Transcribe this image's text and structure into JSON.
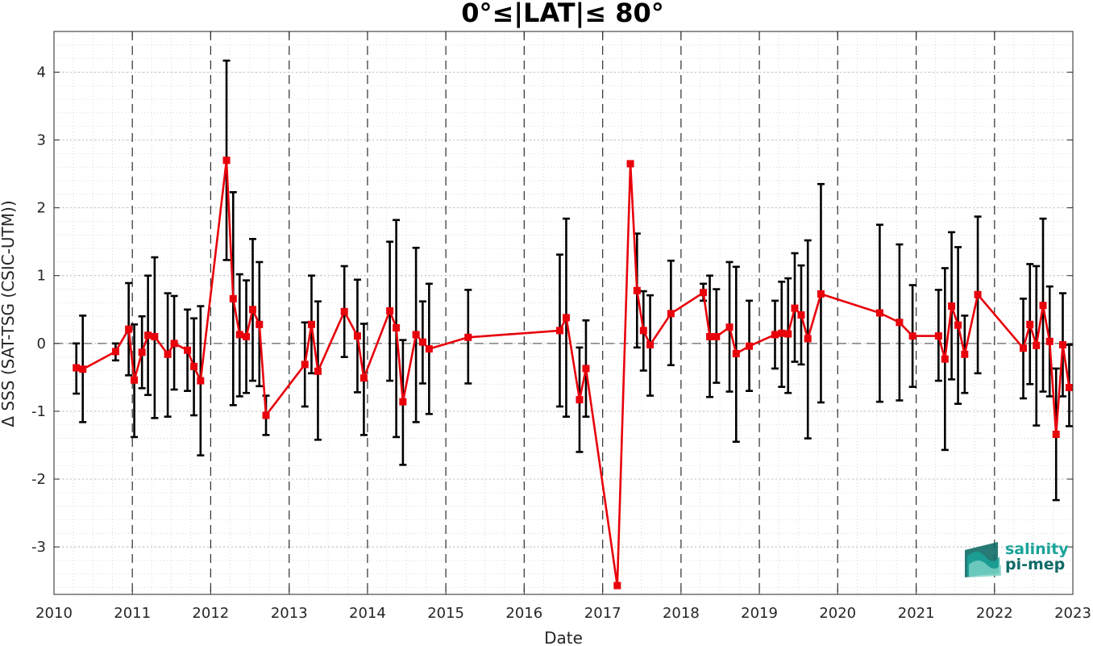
{
  "chart_data": {
    "type": "line",
    "title": "0°≤|LAT|≤ 80°",
    "xlabel": "Date",
    "ylabel": "Δ SSS (SAT-TSG (CSIC-UTM))",
    "xlim": [
      "2010-01-01",
      "2023-01-01"
    ],
    "ylim": [
      -3.7,
      4.6
    ],
    "x_ticks": [
      "2010",
      "2011",
      "2012",
      "2013",
      "2014",
      "2015",
      "2016",
      "2017",
      "2018",
      "2019",
      "2020",
      "2021",
      "2022",
      "2023"
    ],
    "y_ticks": [
      -3,
      -2,
      -1,
      0,
      1,
      2,
      3,
      4
    ],
    "grid": true,
    "minor_grid": true,
    "year_markers": "dashed vertical lines at each year",
    "zero_line": "dashed horizontal line at 0",
    "colors": {
      "series": "#e8000b",
      "errorbar": "#000000",
      "logo_primary": "#1aa39a",
      "logo_secondary": "#0f6b66"
    },
    "series": [
      {
        "marker": "square",
        "x": [
          "2010-04-15",
          "2010-05-15",
          "2010-10-15",
          "2010-12-15",
          "2011-01-10",
          "2011-02-15",
          "2011-03-15",
          "2011-04-15",
          "2011-06-15",
          "2011-07-15",
          "2011-09-15",
          "2011-10-15",
          "2011-11-15",
          "2012-03-15",
          "2012-04-15",
          "2012-05-15",
          "2012-06-15",
          "2012-07-15",
          "2012-08-15",
          "2012-09-15",
          "2013-03-15",
          "2013-04-15",
          "2013-05-15",
          "2013-09-15",
          "2013-11-15",
          "2013-12-15",
          "2014-04-15",
          "2014-05-15",
          "2014-06-15",
          "2014-08-15",
          "2014-09-15",
          "2014-10-15",
          "2015-04-15",
          "2016-06-15",
          "2016-07-15",
          "2016-09-15",
          "2016-10-15",
          "2017-03-10",
          "2017-05-10",
          "2017-06-10",
          "2017-07-10",
          "2017-08-10",
          "2017-11-15",
          "2018-04-15",
          "2018-05-15",
          "2018-06-15",
          "2018-08-15",
          "2018-09-15",
          "2018-11-15",
          "2019-03-15",
          "2019-04-15",
          "2019-05-15",
          "2019-06-15",
          "2019-07-15",
          "2019-08-15",
          "2019-10-15",
          "2020-07-15",
          "2020-10-15",
          "2020-12-15",
          "2021-04-15",
          "2021-05-15",
          "2021-06-15",
          "2021-07-15",
          "2021-08-15",
          "2021-10-15",
          "2022-05-15",
          "2022-06-15",
          "2022-07-15",
          "2022-08-15",
          "2022-09-15",
          "2022-10-15",
          "2022-11-15",
          "2022-12-15"
        ],
        "values": [
          -0.36,
          -0.38,
          -0.12,
          0.21,
          -0.54,
          -0.13,
          0.12,
          0.1,
          -0.16,
          0.0,
          -0.1,
          -0.34,
          -0.55,
          2.7,
          0.66,
          0.13,
          0.1,
          0.5,
          0.28,
          -1.06,
          -0.31,
          0.28,
          -0.41,
          0.47,
          0.11,
          -0.51,
          0.48,
          0.23,
          -0.86,
          0.13,
          0.02,
          -0.08,
          0.09,
          0.19,
          0.38,
          -0.83,
          -0.37,
          -3.57,
          2.65,
          0.78,
          0.19,
          -0.02,
          0.44,
          0.75,
          0.1,
          0.1,
          0.24,
          -0.15,
          -0.04,
          0.13,
          0.15,
          0.14,
          0.52,
          0.42,
          0.07,
          0.73,
          0.45,
          0.31,
          0.11,
          0.11,
          -0.23,
          0.55,
          0.27,
          -0.16,
          0.72,
          -0.07,
          0.28,
          -0.03,
          0.56,
          0.03,
          -1.34,
          -0.02,
          -0.65
        ],
        "err_lo": [
          -0.74,
          -1.16,
          -0.25,
          -0.47,
          -1.38,
          -0.66,
          -0.76,
          -1.1,
          -1.08,
          -0.68,
          -0.7,
          -1.06,
          -1.65,
          1.23,
          -0.91,
          -0.78,
          -0.73,
          -0.55,
          -0.63,
          -1.35,
          -0.93,
          -0.44,
          -1.42,
          -0.2,
          -0.72,
          -1.35,
          -0.55,
          -1.38,
          -1.79,
          -1.16,
          -0.59,
          -1.04,
          -0.59,
          -0.93,
          -1.08,
          -1.6,
          -1.08,
          -3.57,
          2.65,
          -0.06,
          -0.4,
          -0.77,
          -0.32,
          0.63,
          -0.79,
          -0.58,
          -0.71,
          -1.45,
          -0.7,
          -0.37,
          -0.64,
          -0.73,
          -0.27,
          -0.31,
          -1.4,
          -0.87,
          -0.86,
          -0.84,
          -0.64,
          -0.55,
          -1.57,
          -0.53,
          -0.89,
          -0.73,
          -0.44,
          -0.81,
          -0.6,
          -1.21,
          -0.71,
          -0.78,
          -2.31,
          -0.78,
          -1.22
        ],
        "err_hi": [
          0.0,
          0.41,
          0.0,
          0.89,
          0.28,
          0.4,
          1.0,
          1.27,
          0.74,
          0.7,
          0.5,
          0.37,
          0.55,
          4.17,
          2.23,
          1.02,
          0.93,
          1.54,
          1.2,
          -0.77,
          0.31,
          1.0,
          0.62,
          1.14,
          0.94,
          0.29,
          1.5,
          1.82,
          0.05,
          1.41,
          0.62,
          0.88,
          0.79,
          1.31,
          1.84,
          -0.06,
          0.34,
          -3.57,
          2.65,
          1.62,
          0.77,
          0.71,
          1.22,
          0.88,
          1.0,
          0.8,
          1.2,
          1.13,
          0.63,
          0.63,
          0.91,
          0.96,
          1.33,
          1.15,
          1.52,
          2.35,
          1.75,
          1.46,
          0.86,
          0.79,
          1.11,
          1.64,
          1.42,
          0.41,
          1.87,
          0.66,
          1.17,
          1.14,
          1.84,
          0.84,
          -0.37,
          0.74,
          -0.02
        ]
      }
    ]
  },
  "logo": {
    "line1": "salinity",
    "line2": "pi-mep"
  }
}
